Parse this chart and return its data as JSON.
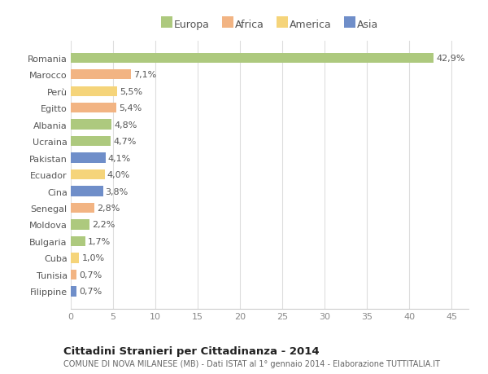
{
  "countries": [
    "Romania",
    "Marocco",
    "Perù",
    "Egitto",
    "Albania",
    "Ucraina",
    "Pakistan",
    "Ecuador",
    "Cina",
    "Senegal",
    "Moldova",
    "Bulgaria",
    "Cuba",
    "Tunisia",
    "Filippine"
  ],
  "values": [
    42.9,
    7.1,
    5.5,
    5.4,
    4.8,
    4.7,
    4.1,
    4.0,
    3.8,
    2.8,
    2.2,
    1.7,
    1.0,
    0.7,
    0.7
  ],
  "labels": [
    "42,9%",
    "7,1%",
    "5,5%",
    "5,4%",
    "4,8%",
    "4,7%",
    "4,1%",
    "4,0%",
    "3,8%",
    "2,8%",
    "2,2%",
    "1,7%",
    "1,0%",
    "0,7%",
    "0,7%"
  ],
  "continents": [
    "Europa",
    "Africa",
    "America",
    "Africa",
    "Europa",
    "Europa",
    "Asia",
    "America",
    "Asia",
    "Africa",
    "Europa",
    "Europa",
    "America",
    "Africa",
    "Asia"
  ],
  "colors": {
    "Europa": "#adc97e",
    "Africa": "#f2b483",
    "America": "#f5d47a",
    "Asia": "#6f8ec9"
  },
  "legend_order": [
    "Europa",
    "Africa",
    "America",
    "Asia"
  ],
  "title": "Cittadini Stranieri per Cittadinanza - 2014",
  "subtitle": "COMUNE DI NOVA MILANESE (MB) - Dati ISTAT al 1° gennaio 2014 - Elaborazione TUTTITALIA.IT",
  "xlim": [
    0,
    47
  ],
  "xticks": [
    0,
    5,
    10,
    15,
    20,
    25,
    30,
    35,
    40,
    45
  ],
  "plot_bg": "#ffffff",
  "fig_bg": "#ffffff",
  "grid_color": "#dddddd",
  "bar_height": 0.6,
  "label_fontsize": 8,
  "tick_fontsize": 8
}
